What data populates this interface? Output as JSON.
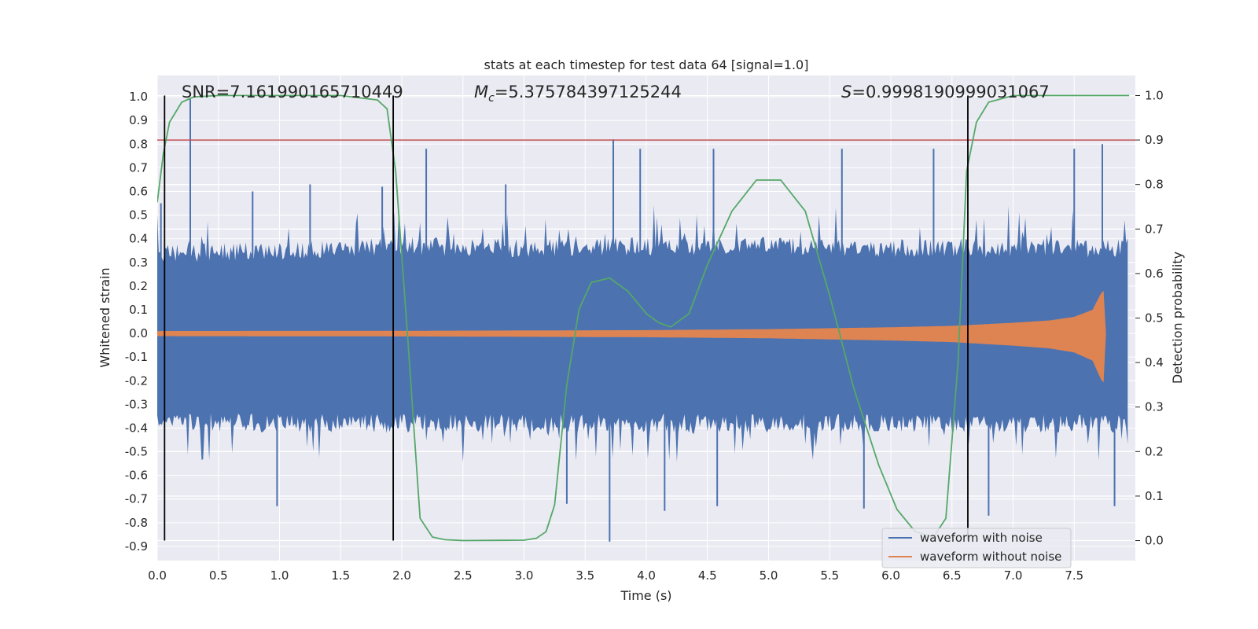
{
  "chart_data": {
    "type": "line",
    "title": "stats at each timestep for test data 64 [signal=1.0]",
    "xlabel": "Time (s)",
    "ylabel_left": "Whitened strain",
    "ylabel_right": "Detection probability",
    "xlim": [
      0.0,
      8.0
    ],
    "ylim_left": [
      -0.96,
      1.09
    ],
    "ylim_right": [
      -0.045,
      1.045
    ],
    "x_ticks": [
      "0.0",
      "0.5",
      "1.0",
      "1.5",
      "2.0",
      "2.5",
      "3.0",
      "3.5",
      "4.0",
      "4.5",
      "5.0",
      "5.5",
      "6.0",
      "6.5",
      "7.0",
      "7.5"
    ],
    "y_ticks_left": [
      "1.0",
      "0.9",
      "0.8",
      "0.7",
      "0.6",
      "0.5",
      "0.4",
      "0.3",
      "0.2",
      "0.1",
      "0.0",
      "-0.1",
      "-0.2",
      "-0.3",
      "-0.4",
      "-0.5",
      "-0.6",
      "-0.7",
      "-0.8",
      "-0.9"
    ],
    "y_ticks_right": [
      "1.0",
      "0.9",
      "0.8",
      "0.7",
      "0.6",
      "0.5",
      "0.4",
      "0.3",
      "0.2",
      "0.1",
      "0.0"
    ],
    "annotations": {
      "snr": "SNR=7.161990165710449",
      "mc": "=5.375784397125244",
      "s": "=0.9998190999031067"
    },
    "threshold": {
      "axis": "right",
      "value": 0.9,
      "color": "#c44e52"
    },
    "vertical_lines": [
      0.06,
      1.93,
      6.63
    ],
    "noise_envelope": {
      "x": [
        0.0,
        1.0,
        2.0,
        3.0,
        4.0,
        5.0,
        6.0,
        7.0,
        7.95
      ],
      "pos": [
        0.33,
        0.34,
        0.36,
        0.35,
        0.36,
        0.36,
        0.35,
        0.35,
        0.35
      ],
      "neg": [
        -0.36,
        -0.37,
        -0.37,
        -0.37,
        -0.37,
        -0.37,
        -0.37,
        -0.37,
        -0.37
      ]
    },
    "noise_spikes": [
      {
        "x": 0.03,
        "y": 0.55
      },
      {
        "x": 0.27,
        "y": 0.99
      },
      {
        "x": 0.78,
        "y": 0.6
      },
      {
        "x": 0.98,
        "y": -0.73
      },
      {
        "x": 1.25,
        "y": 0.63
      },
      {
        "x": 1.84,
        "y": 0.62
      },
      {
        "x": 2.2,
        "y": 0.78
      },
      {
        "x": 2.85,
        "y": 0.63
      },
      {
        "x": 3.35,
        "y": -0.72
      },
      {
        "x": 3.7,
        "y": -0.88
      },
      {
        "x": 3.73,
        "y": 0.82
      },
      {
        "x": 3.95,
        "y": 0.78
      },
      {
        "x": 4.15,
        "y": -0.75
      },
      {
        "x": 4.55,
        "y": 0.78
      },
      {
        "x": 4.58,
        "y": -0.73
      },
      {
        "x": 5.6,
        "y": 0.78
      },
      {
        "x": 5.78,
        "y": -0.74
      },
      {
        "x": 6.35,
        "y": 0.78
      },
      {
        "x": 6.8,
        "y": -0.77
      },
      {
        "x": 7.5,
        "y": 0.78
      },
      {
        "x": 7.73,
        "y": 0.8
      },
      {
        "x": 7.83,
        "y": -0.73
      }
    ],
    "clean_envelope": {
      "x": [
        0.0,
        2.0,
        4.0,
        5.0,
        6.0,
        6.5,
        7.0,
        7.3,
        7.5,
        7.65,
        7.72,
        7.74,
        7.76,
        8.0
      ],
      "amp": [
        0.01,
        0.011,
        0.014,
        0.018,
        0.026,
        0.032,
        0.045,
        0.055,
        0.07,
        0.1,
        0.17,
        0.18,
        0.0,
        0.0
      ]
    },
    "detection_probability": {
      "x": [
        0.0,
        0.05,
        0.1,
        0.2,
        0.3,
        0.5,
        1.0,
        1.5,
        1.8,
        1.88,
        1.95,
        2.05,
        2.15,
        2.25,
        2.35,
        2.5,
        3.0,
        3.1,
        3.18,
        3.25,
        3.35,
        3.45,
        3.55,
        3.7,
        3.85,
        4.0,
        4.1,
        4.2,
        4.35,
        4.5,
        4.7,
        4.9,
        5.1,
        5.3,
        5.5,
        5.7,
        5.9,
        6.05,
        6.2,
        6.35,
        6.45,
        6.55,
        6.62,
        6.7,
        6.8,
        7.0,
        7.5,
        7.95
      ],
      "y": [
        0.76,
        0.87,
        0.94,
        0.985,
        0.997,
        1.0,
        1.0,
        1.0,
        0.99,
        0.97,
        0.83,
        0.45,
        0.05,
        0.008,
        0.002,
        0.0,
        0.001,
        0.005,
        0.02,
        0.08,
        0.35,
        0.52,
        0.58,
        0.59,
        0.56,
        0.51,
        0.49,
        0.48,
        0.51,
        0.62,
        0.74,
        0.81,
        0.81,
        0.74,
        0.55,
        0.34,
        0.17,
        0.07,
        0.02,
        0.008,
        0.05,
        0.4,
        0.83,
        0.94,
        0.985,
        1.0,
        1.0,
        1.0
      ]
    },
    "legend": {
      "placement": "bottom-right",
      "entries": [
        {
          "label": "waveform with noise",
          "color": "#4c72b0"
        },
        {
          "label": "waveform without noise",
          "color": "#dd8452"
        }
      ]
    },
    "colors": {
      "noise": "#4c72b0",
      "clean": "#dd8452",
      "probability": "#55a868",
      "plot_bg": "#eaeaf2",
      "grid": "#ffffff",
      "vline": "#000000"
    }
  }
}
